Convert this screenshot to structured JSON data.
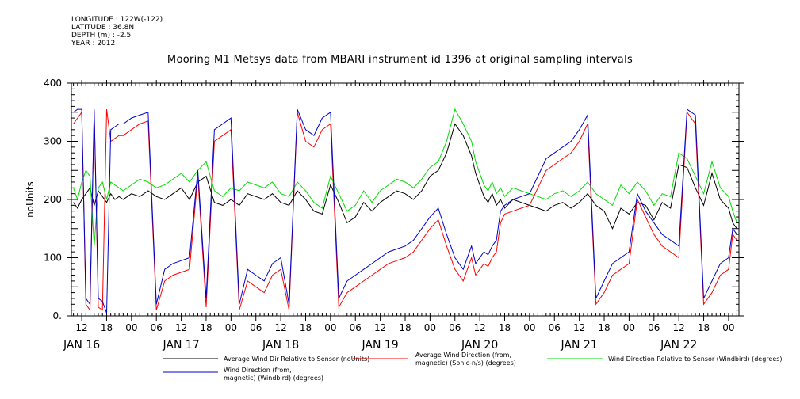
{
  "header": {
    "meta_lines": [
      "LONGITUDE : 122W(-122)",
      "LATITUDE : 36.8N",
      "DEPTH (m) : -2.5",
      "YEAR : 2012"
    ],
    "title": "Mooring M1 Metsys data from MBARI instrument id 1396 at original sampling intervals"
  },
  "chart_data": {
    "type": "line",
    "title": "Mooring M1 Metsys data from MBARI instrument id 1396 at original sampling intervals",
    "xlabel": "",
    "ylabel": "noUnits",
    "x_unit": "hours since 2012-01-16 00:00",
    "xlim": [
      9.5,
      170.5
    ],
    "ylim": [
      0,
      400
    ],
    "yticks": [
      0,
      100,
      200,
      300,
      400
    ],
    "ytick_labels": [
      "0.",
      "100",
      "200",
      "300",
      "400"
    ],
    "xtick_positions": [
      12,
      18,
      24,
      30,
      36,
      42,
      48,
      54,
      60,
      66,
      72,
      78,
      84,
      90,
      96,
      102,
      108,
      114,
      120,
      126,
      132,
      138,
      144,
      150,
      156,
      162,
      168
    ],
    "xtick_labels": [
      "12",
      "18",
      "00",
      "06",
      "12",
      "18",
      "00",
      "06",
      "12",
      "18",
      "00",
      "06",
      "12",
      "18",
      "00",
      "06",
      "12",
      "18",
      "00",
      "06",
      "12",
      "18",
      "00",
      "06",
      "12",
      "18",
      "00"
    ],
    "day_labels": [
      {
        "x": 12,
        "label": "JAN 16"
      },
      {
        "x": 36,
        "label": "JAN 17"
      },
      {
        "x": 60,
        "label": "JAN 18"
      },
      {
        "x": 84,
        "label": "JAN 19"
      },
      {
        "x": 108,
        "label": "JAN 20"
      },
      {
        "x": 132,
        "label": "JAN 21"
      },
      {
        "x": 156,
        "label": "JAN 22"
      }
    ],
    "series": [
      {
        "name": "Average Wind Dir Relative to Sensor (noUnits)",
        "color": "#000000",
        "x": [
          10,
          11,
          12,
          13,
          14,
          15,
          16,
          17,
          18,
          19,
          20,
          21,
          22,
          24,
          26,
          28,
          30,
          32,
          34,
          36,
          38,
          40,
          42,
          44,
          46,
          48,
          50,
          52,
          54,
          56,
          58,
          60,
          62,
          64,
          66,
          68,
          70,
          72,
          74,
          76,
          78,
          80,
          82,
          84,
          86,
          88,
          90,
          92,
          94,
          96,
          98,
          100,
          102,
          104,
          106,
          107,
          108,
          109,
          110,
          111,
          112,
          113,
          114,
          116,
          118,
          120,
          122,
          124,
          126,
          128,
          130,
          132,
          134,
          136,
          138,
          140,
          142,
          144,
          146,
          148,
          150,
          152,
          154,
          156,
          158,
          160,
          162,
          164,
          166,
          168,
          169,
          170
        ],
        "y": [
          195,
          185,
          200,
          210,
          220,
          190,
          215,
          205,
          195,
          210,
          200,
          205,
          200,
          210,
          205,
          215,
          205,
          200,
          210,
          220,
          200,
          230,
          240,
          195,
          190,
          200,
          190,
          210,
          205,
          200,
          210,
          195,
          190,
          215,
          200,
          180,
          175,
          225,
          195,
          160,
          170,
          195,
          180,
          195,
          205,
          215,
          210,
          200,
          215,
          240,
          250,
          280,
          330,
          310,
          275,
          245,
          225,
          205,
          195,
          210,
          190,
          200,
          185,
          200,
          195,
          190,
          185,
          180,
          190,
          195,
          185,
          195,
          210,
          190,
          180,
          150,
          185,
          175,
          195,
          190,
          165,
          195,
          185,
          260,
          255,
          220,
          190,
          245,
          200,
          185,
          160,
          150
        ]
      },
      {
        "name": "Average Wind Direction (from, magnetic) (Sonic-n/s) (degrees)",
        "color": "#ff0000",
        "x": [
          10,
          11,
          12,
          13,
          14,
          15,
          16,
          17,
          18,
          19,
          20,
          21,
          22,
          24,
          26,
          28,
          30,
          32,
          34,
          36,
          38,
          40,
          42,
          44,
          46,
          48,
          50,
          52,
          54,
          56,
          58,
          60,
          62,
          64,
          66,
          68,
          70,
          72,
          74,
          76,
          78,
          80,
          82,
          84,
          86,
          88,
          90,
          92,
          94,
          96,
          98,
          100,
          102,
          104,
          106,
          107,
          108,
          109,
          110,
          111,
          112,
          113,
          114,
          116,
          118,
          120,
          122,
          124,
          126,
          128,
          130,
          132,
          134,
          136,
          138,
          140,
          142,
          144,
          146,
          148,
          150,
          152,
          154,
          156,
          158,
          160,
          162,
          164,
          166,
          168,
          169,
          170
        ],
        "y": [
          330,
          340,
          350,
          20,
          10,
          350,
          15,
          10,
          355,
          300,
          305,
          310,
          310,
          320,
          330,
          335,
          10,
          60,
          70,
          75,
          80,
          240,
          15,
          300,
          310,
          320,
          10,
          60,
          50,
          40,
          70,
          80,
          10,
          350,
          300,
          290,
          320,
          330,
          15,
          40,
          50,
          60,
          70,
          80,
          90,
          95,
          100,
          110,
          130,
          150,
          165,
          120,
          80,
          60,
          100,
          70,
          80,
          90,
          85,
          100,
          110,
          160,
          175,
          180,
          185,
          190,
          220,
          250,
          260,
          270,
          280,
          300,
          330,
          20,
          40,
          70,
          80,
          90,
          200,
          170,
          140,
          120,
          110,
          100,
          350,
          330,
          20,
          40,
          70,
          80,
          140,
          130
        ]
      },
      {
        "name": "Wind Direction Relative to Sensor (Windbird) (degrees)",
        "color": "#00dd00",
        "x": [
          10,
          11,
          12,
          13,
          14,
          15,
          16,
          17,
          18,
          19,
          20,
          21,
          22,
          24,
          26,
          28,
          30,
          32,
          34,
          36,
          38,
          40,
          42,
          44,
          46,
          48,
          50,
          52,
          54,
          56,
          58,
          60,
          62,
          64,
          66,
          68,
          70,
          72,
          74,
          76,
          78,
          80,
          82,
          84,
          86,
          88,
          90,
          92,
          94,
          96,
          98,
          100,
          102,
          104,
          106,
          107,
          108,
          109,
          110,
          111,
          112,
          113,
          114,
          116,
          118,
          120,
          122,
          124,
          126,
          128,
          130,
          132,
          134,
          136,
          138,
          140,
          142,
          144,
          146,
          148,
          150,
          152,
          154,
          156,
          158,
          160,
          162,
          164,
          166,
          168,
          169,
          170
        ],
        "y": [
          220,
          200,
          230,
          250,
          240,
          120,
          220,
          230,
          200,
          230,
          225,
          220,
          215,
          225,
          235,
          230,
          220,
          225,
          235,
          245,
          230,
          250,
          265,
          215,
          205,
          220,
          215,
          230,
          225,
          220,
          230,
          210,
          205,
          230,
          215,
          195,
          185,
          240,
          210,
          180,
          190,
          215,
          195,
          215,
          225,
          235,
          230,
          220,
          235,
          255,
          265,
          300,
          355,
          330,
          300,
          265,
          245,
          225,
          215,
          230,
          210,
          220,
          205,
          220,
          215,
          210,
          205,
          200,
          210,
          215,
          205,
          215,
          230,
          210,
          200,
          190,
          225,
          210,
          230,
          215,
          190,
          210,
          205,
          280,
          270,
          240,
          210,
          265,
          220,
          205,
          180,
          160
        ]
      },
      {
        "name": "Wind Direction (from, magnetic) (Windbird) (degrees)",
        "color": "#0000cc",
        "x": [
          10,
          11,
          12,
          13,
          14,
          15,
          16,
          17,
          18,
          19,
          20,
          21,
          22,
          24,
          26,
          28,
          30,
          32,
          34,
          36,
          38,
          40,
          42,
          44,
          46,
          48,
          50,
          52,
          54,
          56,
          58,
          60,
          62,
          64,
          66,
          68,
          70,
          72,
          74,
          76,
          78,
          80,
          82,
          84,
          86,
          88,
          90,
          92,
          94,
          96,
          98,
          100,
          102,
          104,
          106,
          107,
          108,
          109,
          110,
          111,
          112,
          113,
          114,
          116,
          118,
          120,
          122,
          124,
          126,
          128,
          130,
          132,
          134,
          136,
          138,
          140,
          142,
          144,
          146,
          148,
          150,
          152,
          154,
          156,
          158,
          160,
          162,
          164,
          166,
          168,
          169,
          170
        ],
        "y": [
          350,
          355,
          355,
          30,
          20,
          355,
          30,
          25,
          5,
          320,
          325,
          330,
          330,
          340,
          345,
          350,
          20,
          80,
          90,
          95,
          100,
          250,
          30,
          320,
          330,
          340,
          20,
          80,
          70,
          60,
          90,
          100,
          20,
          355,
          320,
          310,
          340,
          350,
          30,
          60,
          70,
          80,
          90,
          100,
          110,
          115,
          120,
          130,
          150,
          170,
          185,
          140,
          100,
          80,
          120,
          90,
          100,
          110,
          105,
          120,
          130,
          180,
          190,
          200,
          205,
          210,
          240,
          270,
          280,
          290,
          300,
          320,
          345,
          30,
          60,
          90,
          100,
          110,
          210,
          180,
          160,
          140,
          130,
          120,
          355,
          345,
          30,
          60,
          90,
          100,
          150,
          140
        ]
      }
    ]
  },
  "legend": [
    {
      "name": "Average Wind Dir Relative to Sensor (noUnits)",
      "color": "#000000"
    },
    {
      "name": "Average Wind Direction (from,",
      "name2": "magnetic) (Sonic-n/s) (degrees)",
      "color": "#ff0000"
    },
    {
      "name": "Wind Direction Relative to Sensor (Windbird) (degrees)",
      "color": "#00dd00"
    },
    {
      "name": "Wind Direction (from,",
      "name2": "magnetic) (Windbird) (degrees)",
      "color": "#0000cc"
    }
  ]
}
